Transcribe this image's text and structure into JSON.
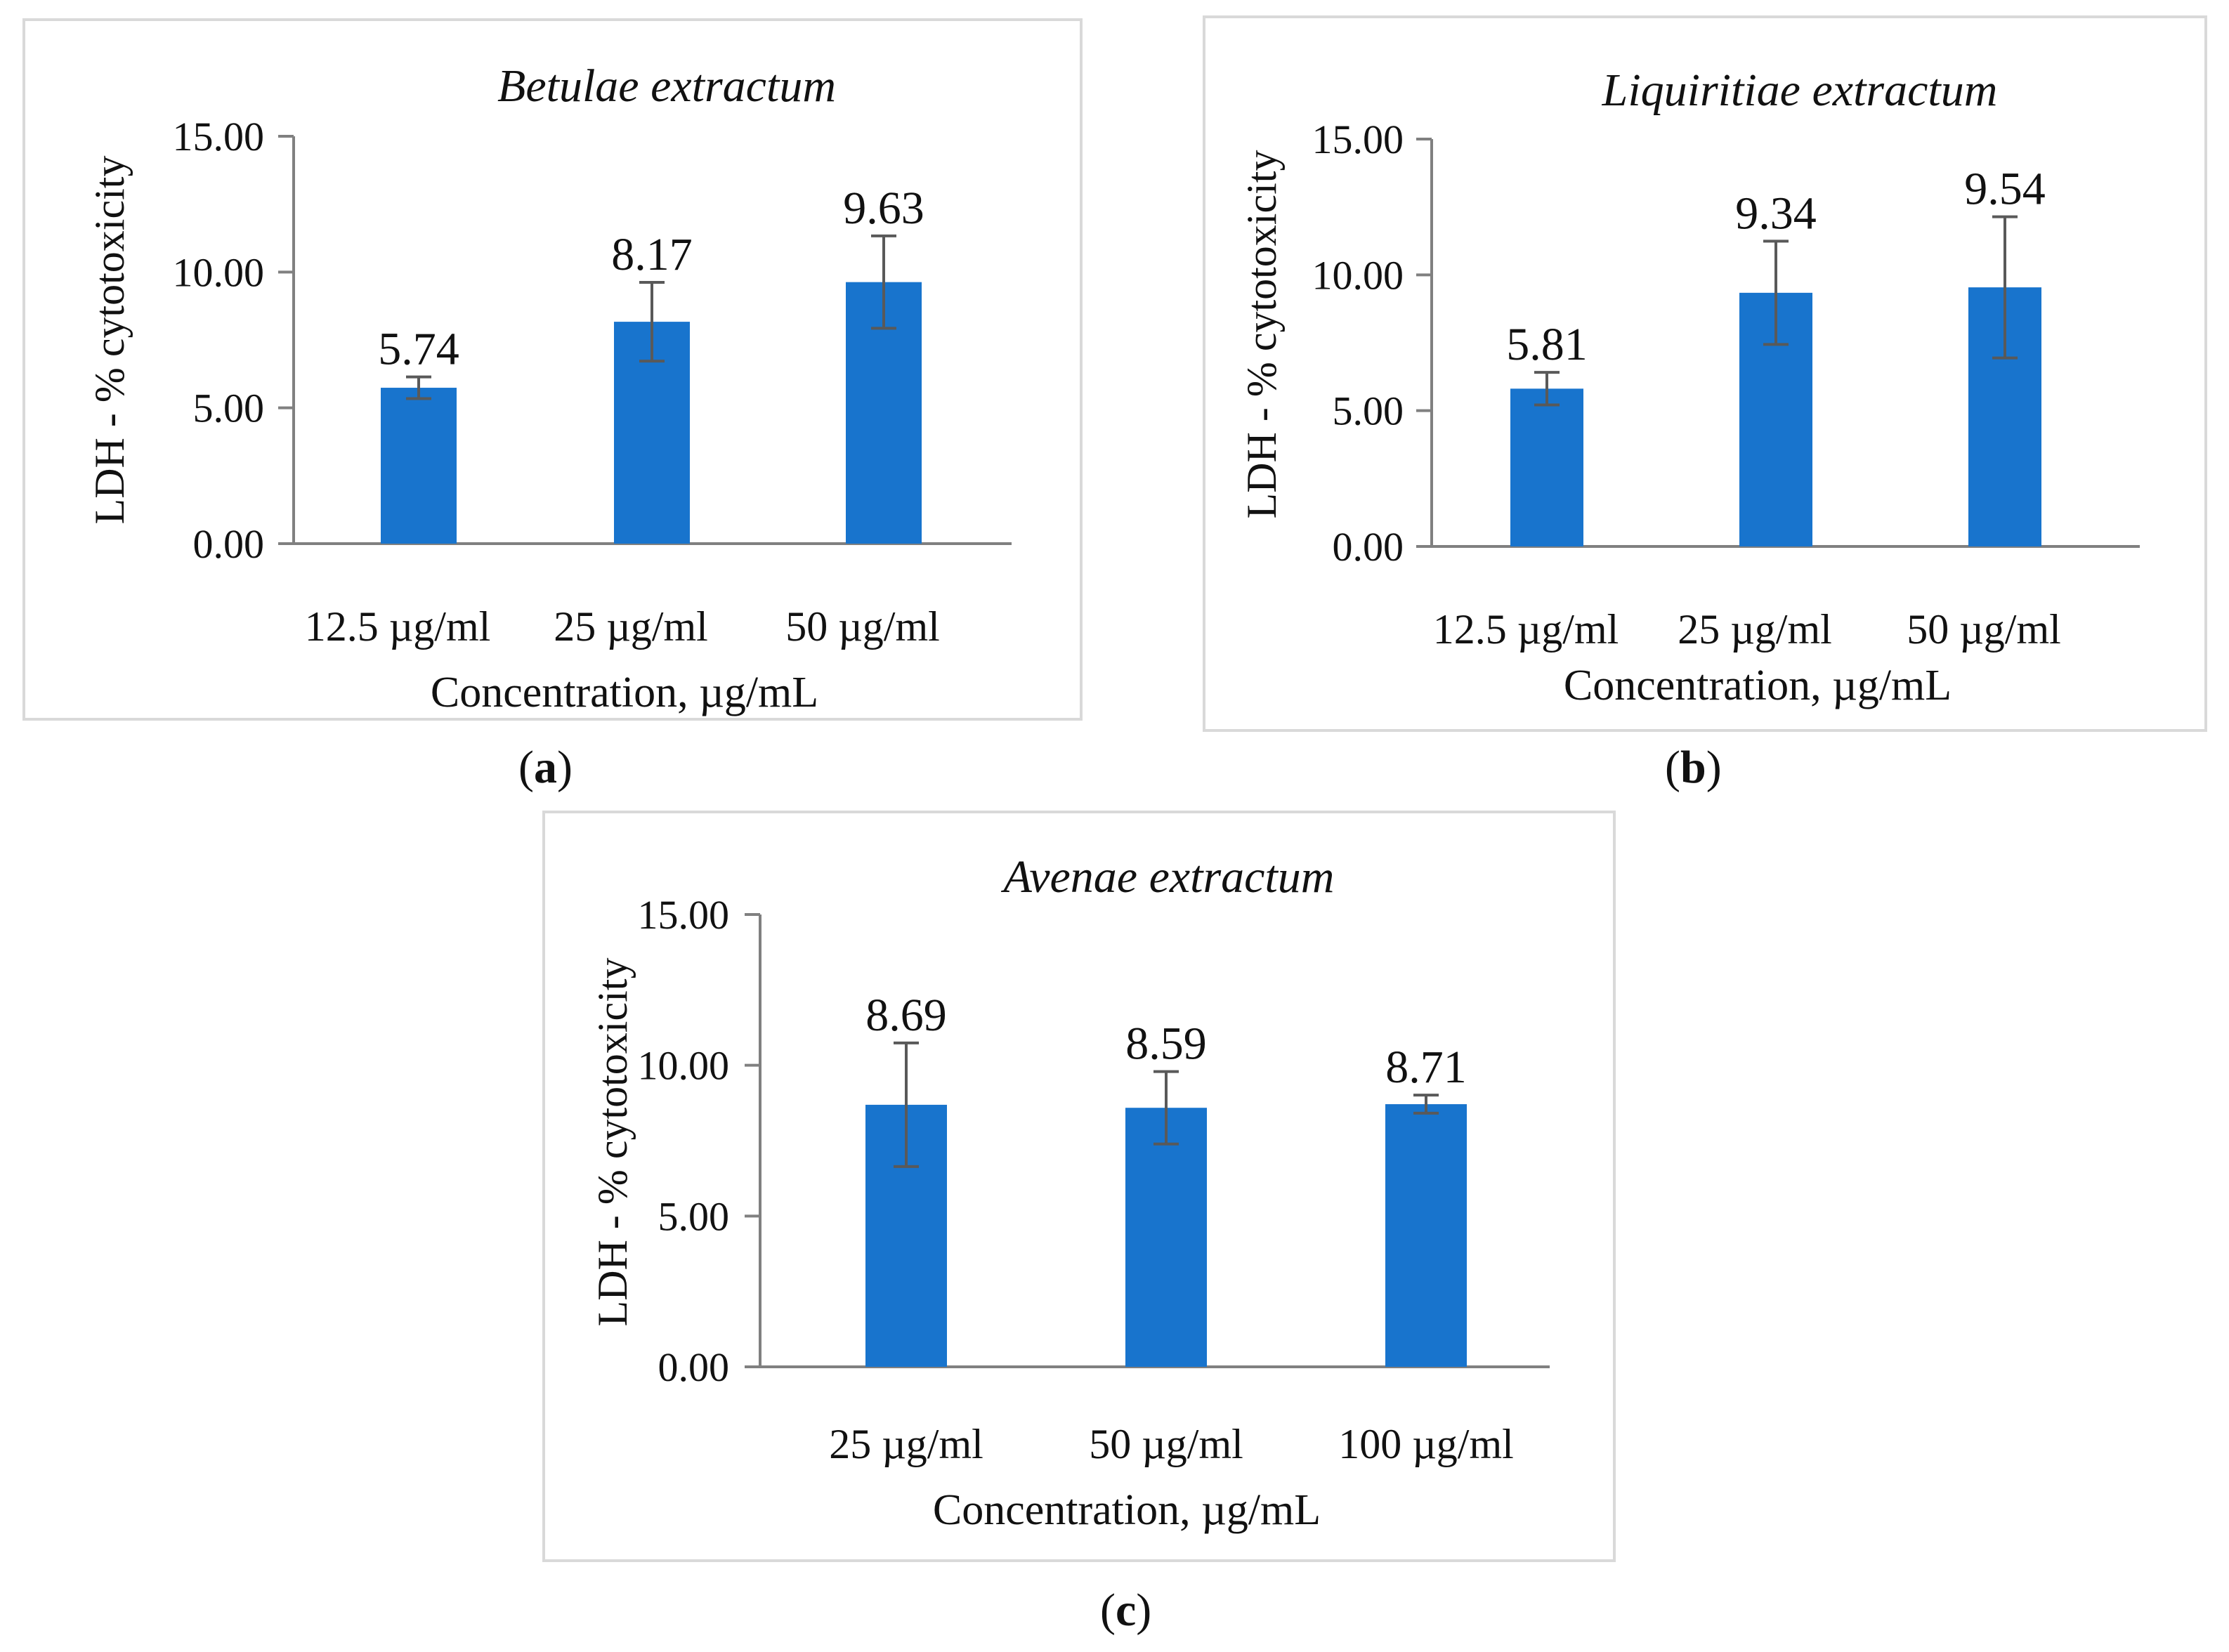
{
  "panels": [
    {
      "id": "a",
      "label_open": "(",
      "label_letter": "a",
      "label_close": ")"
    },
    {
      "id": "b",
      "label_open": "(",
      "label_letter": "b",
      "label_close": ")"
    },
    {
      "id": "c",
      "label_open": "(",
      "label_letter": "c",
      "label_close": ")"
    }
  ],
  "colors": {
    "bar": "#1874CD",
    "axis": "#808080",
    "error": "#595959"
  },
  "chart_data": [
    {
      "type": "bar",
      "title": "Betulae extractum",
      "xlabel": "Concentration, µg/mL",
      "ylabel": "LDH - % cytotoxicity",
      "categories": [
        "12.5 µg/ml",
        "25 µg/ml",
        "50 µg/ml"
      ],
      "values": [
        5.74,
        8.17,
        9.63
      ],
      "value_labels": [
        "5.74",
        "8.17",
        "9.63"
      ],
      "errors": [
        0.4,
        1.45,
        1.7
      ],
      "ylim": [
        0,
        15
      ],
      "yticks": [
        0,
        5,
        10,
        15
      ],
      "ytick_labels": [
        "0.00",
        "5.00",
        "10.00",
        "15.00"
      ]
    },
    {
      "type": "bar",
      "title": "Liquiritiae extractum",
      "xlabel": "Concentration, µg/mL",
      "ylabel": "LDH - % cytotoxicity",
      "categories": [
        "12.5 µg/ml",
        "25 µg/ml",
        "50 µg/ml"
      ],
      "values": [
        5.81,
        9.34,
        9.54
      ],
      "value_labels": [
        "5.81",
        "9.34",
        "9.54"
      ],
      "errors": [
        0.6,
        1.9,
        2.6
      ],
      "ylim": [
        0,
        15
      ],
      "yticks": [
        0,
        5,
        10,
        15
      ],
      "ytick_labels": [
        "0.00",
        "5.00",
        "10.00",
        "15.00"
      ]
    },
    {
      "type": "bar",
      "title": "Avenae extractum",
      "xlabel": "Concentration, µg/mL",
      "ylabel": "LDH - % cytotoxicity",
      "categories": [
        "25 µg/ml",
        "50 µg/ml",
        "100 µg/ml"
      ],
      "values": [
        8.69,
        8.59,
        8.71
      ],
      "value_labels": [
        "8.69",
        "8.59",
        "8.71"
      ],
      "errors": [
        2.05,
        1.2,
        0.3
      ],
      "ylim": [
        0,
        15
      ],
      "yticks": [
        0,
        5,
        10,
        15
      ],
      "ytick_labels": [
        "0.00",
        "5.00",
        "10.00",
        "15.00"
      ]
    }
  ]
}
